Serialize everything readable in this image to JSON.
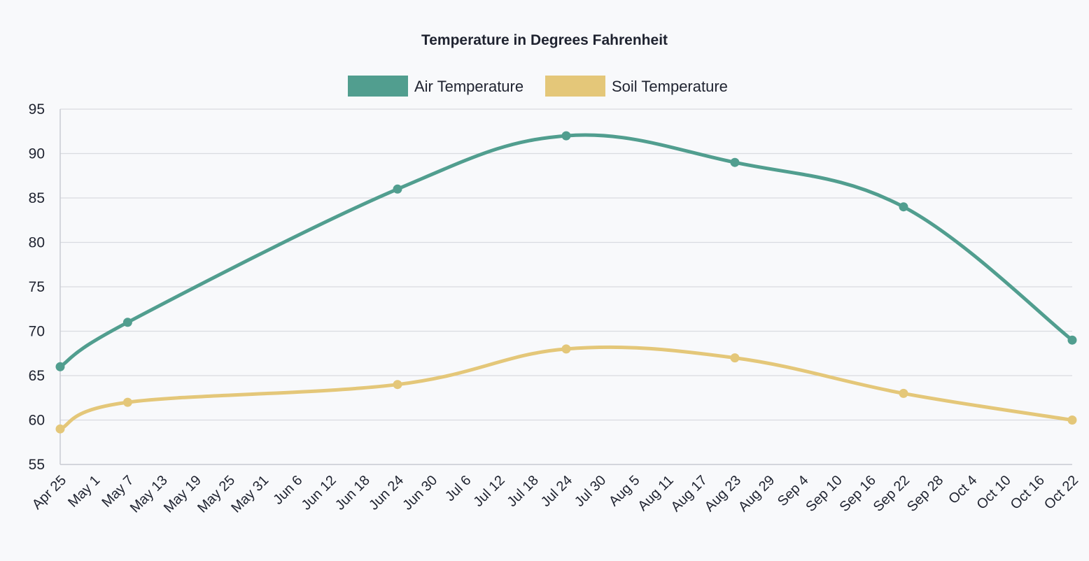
{
  "chart_data": {
    "type": "line",
    "title": "Temperature in Degrees Fahrenheit",
    "xlabel": "",
    "ylabel": "",
    "ylim": [
      55,
      95
    ],
    "yticks": [
      55,
      60,
      65,
      70,
      75,
      80,
      85,
      90,
      95
    ],
    "grid": true,
    "legend_position": "top-center",
    "x_tick_labels": [
      "Apr 25",
      "May 1",
      "May 7",
      "May 13",
      "May 19",
      "May 25",
      "May 31",
      "Jun 6",
      "Jun 12",
      "Jun 18",
      "Jun 24",
      "Jun 30",
      "Jul 6",
      "Jul 12",
      "Jul 18",
      "Jul 24",
      "Jul 30",
      "Aug 5",
      "Aug 11",
      "Aug 17",
      "Aug 23",
      "Aug 29",
      "Sep 4",
      "Sep 10",
      "Sep 16",
      "Sep 22",
      "Sep 28",
      "Oct 4",
      "Oct 10",
      "Oct 16",
      "Oct 22"
    ],
    "x_range_days": [
      0,
      180
    ],
    "x_tick_interval_days": 6,
    "series": [
      {
        "name": "Air Temperature",
        "color": "#519e8f",
        "points": [
          {
            "day": 0,
            "value": 66
          },
          {
            "day": 12,
            "value": 71
          },
          {
            "day": 60,
            "value": 86
          },
          {
            "day": 90,
            "value": 92
          },
          {
            "day": 120,
            "value": 89
          },
          {
            "day": 150,
            "value": 84
          },
          {
            "day": 180,
            "value": 69
          }
        ]
      },
      {
        "name": "Soil Temperature",
        "color": "#e4c779",
        "points": [
          {
            "day": 0,
            "value": 59
          },
          {
            "day": 12,
            "value": 62
          },
          {
            "day": 60,
            "value": 64
          },
          {
            "day": 90,
            "value": 68
          },
          {
            "day": 120,
            "value": 67
          },
          {
            "day": 150,
            "value": 63
          },
          {
            "day": 180,
            "value": 60
          }
        ]
      }
    ]
  }
}
